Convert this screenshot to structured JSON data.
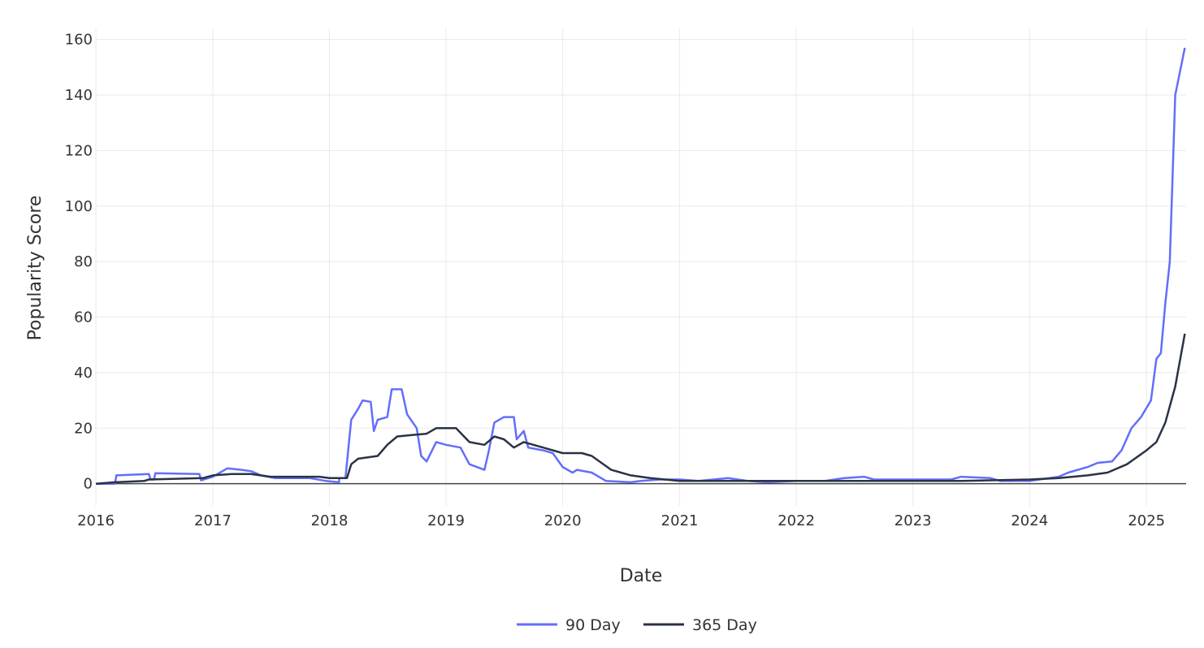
{
  "chart_data": {
    "type": "line",
    "title": "",
    "xlabel": "Date",
    "ylabel": "Popularity Score",
    "xlim": [
      "2016-01-01",
      "2025-05-05"
    ],
    "ylim": [
      -8,
      164
    ],
    "x_ticks": [
      "2016",
      "2017",
      "2018",
      "2019",
      "2020",
      "2021",
      "2022",
      "2023",
      "2024",
      "2025"
    ],
    "y_ticks": [
      0,
      20,
      40,
      60,
      80,
      100,
      120,
      140,
      160
    ],
    "grid": true,
    "legend_position": "bottom-center",
    "series": [
      {
        "name": "90 Day",
        "color": "#636efa",
        "points": [
          [
            "2016-01-01",
            0
          ],
          [
            "2016-03-01",
            0
          ],
          [
            "2016-03-05",
            3
          ],
          [
            "2016-06-15",
            3.5
          ],
          [
            "2016-06-20",
            1.5
          ],
          [
            "2016-07-01",
            1.5
          ],
          [
            "2016-07-05",
            3.8
          ],
          [
            "2016-11-20",
            3.5
          ],
          [
            "2016-11-25",
            1.2
          ],
          [
            "2017-01-01",
            2.5
          ],
          [
            "2017-02-15",
            5.5
          ],
          [
            "2017-04-01",
            5
          ],
          [
            "2017-05-01",
            4.5
          ],
          [
            "2017-06-01",
            3
          ],
          [
            "2017-07-15",
            2
          ],
          [
            "2017-11-01",
            2
          ],
          [
            "2017-12-20",
            1
          ],
          [
            "2018-01-31",
            0.5
          ],
          [
            "2018-02-01",
            2
          ],
          [
            "2018-02-20",
            2
          ],
          [
            "2018-03-10",
            23
          ],
          [
            "2018-04-01",
            27
          ],
          [
            "2018-04-15",
            30
          ],
          [
            "2018-05-10",
            29.5
          ],
          [
            "2018-05-20",
            19
          ],
          [
            "2018-06-01",
            23
          ],
          [
            "2018-07-01",
            24
          ],
          [
            "2018-07-15",
            34
          ],
          [
            "2018-08-15",
            34
          ],
          [
            "2018-09-01",
            25
          ],
          [
            "2018-10-01",
            20
          ],
          [
            "2018-10-15",
            10
          ],
          [
            "2018-11-01",
            8
          ],
          [
            "2018-12-01",
            15
          ],
          [
            "2019-01-01",
            14
          ],
          [
            "2019-02-15",
            13
          ],
          [
            "2019-03-15",
            7
          ],
          [
            "2019-05-01",
            5
          ],
          [
            "2019-05-15",
            12
          ],
          [
            "2019-06-01",
            22
          ],
          [
            "2019-07-01",
            24
          ],
          [
            "2019-08-01",
            24
          ],
          [
            "2019-08-10",
            16
          ],
          [
            "2019-09-01",
            19
          ],
          [
            "2019-09-15",
            13
          ],
          [
            "2019-11-01",
            12
          ],
          [
            "2019-12-01",
            11
          ],
          [
            "2020-01-01",
            6
          ],
          [
            "2020-02-01",
            4
          ],
          [
            "2020-02-15",
            5
          ],
          [
            "2020-04-01",
            4
          ],
          [
            "2020-05-15",
            1
          ],
          [
            "2020-08-01",
            0.5
          ],
          [
            "2020-09-01",
            1
          ],
          [
            "2020-11-01",
            1.5
          ],
          [
            "2021-01-01",
            1.5
          ],
          [
            "2021-03-01",
            1
          ],
          [
            "2021-06-01",
            2
          ],
          [
            "2021-08-01",
            1
          ],
          [
            "2021-10-01",
            0.5
          ],
          [
            "2022-01-01",
            1
          ],
          [
            "2022-04-01",
            1
          ],
          [
            "2022-06-01",
            2
          ],
          [
            "2022-08-01",
            2.5
          ],
          [
            "2022-09-01",
            1.5
          ],
          [
            "2023-01-01",
            1.5
          ],
          [
            "2023-05-01",
            1.5
          ],
          [
            "2023-06-01",
            2.5
          ],
          [
            "2023-09-01",
            2
          ],
          [
            "2023-10-01",
            1
          ],
          [
            "2024-01-01",
            1
          ],
          [
            "2024-04-01",
            2.5
          ],
          [
            "2024-05-01",
            4
          ],
          [
            "2024-07-01",
            6
          ],
          [
            "2024-08-01",
            7.5
          ],
          [
            "2024-09-15",
            8
          ],
          [
            "2024-10-15",
            12
          ],
          [
            "2024-11-15",
            20
          ],
          [
            "2024-12-15",
            24
          ],
          [
            "2025-01-15",
            30
          ],
          [
            "2025-02-01",
            45
          ],
          [
            "2025-02-15",
            47
          ],
          [
            "2025-03-01",
            65
          ],
          [
            "2025-03-15",
            80
          ],
          [
            "2025-04-01",
            140
          ],
          [
            "2025-05-01",
            157
          ]
        ]
      },
      {
        "name": "365 Day",
        "color": "#2a3344",
        "points": [
          [
            "2016-01-01",
            0
          ],
          [
            "2016-03-01",
            0.5
          ],
          [
            "2016-06-01",
            1
          ],
          [
            "2016-06-15",
            1.5
          ],
          [
            "2016-12-01",
            2
          ],
          [
            "2017-01-01",
            3
          ],
          [
            "2017-03-01",
            3.5
          ],
          [
            "2017-05-01",
            3.5
          ],
          [
            "2017-07-01",
            2.5
          ],
          [
            "2017-12-01",
            2.5
          ],
          [
            "2018-01-01",
            2
          ],
          [
            "2018-02-25",
            2
          ],
          [
            "2018-03-10",
            7
          ],
          [
            "2018-04-01",
            9
          ],
          [
            "2018-06-01",
            10
          ],
          [
            "2018-07-01",
            14
          ],
          [
            "2018-08-01",
            17
          ],
          [
            "2018-09-15",
            17.5
          ],
          [
            "2018-11-01",
            18
          ],
          [
            "2018-12-01",
            20
          ],
          [
            "2019-02-01",
            20
          ],
          [
            "2019-03-15",
            15
          ],
          [
            "2019-05-01",
            14
          ],
          [
            "2019-06-01",
            17
          ],
          [
            "2019-07-01",
            16
          ],
          [
            "2019-08-01",
            13
          ],
          [
            "2019-09-01",
            15
          ],
          [
            "2019-11-01",
            13
          ],
          [
            "2020-01-01",
            11
          ],
          [
            "2020-03-01",
            11
          ],
          [
            "2020-04-01",
            10
          ],
          [
            "2020-06-01",
            5
          ],
          [
            "2020-08-01",
            3
          ],
          [
            "2020-10-01",
            2
          ],
          [
            "2021-01-01",
            1
          ],
          [
            "2021-06-01",
            1
          ],
          [
            "2022-01-01",
            1
          ],
          [
            "2022-06-01",
            1
          ],
          [
            "2023-01-01",
            1
          ],
          [
            "2023-06-01",
            1
          ],
          [
            "2024-01-01",
            1.5
          ],
          [
            "2024-04-01",
            2
          ],
          [
            "2024-07-01",
            3
          ],
          [
            "2024-09-01",
            4
          ],
          [
            "2024-11-01",
            7
          ],
          [
            "2025-01-01",
            12
          ],
          [
            "2025-02-01",
            15
          ],
          [
            "2025-03-01",
            22
          ],
          [
            "2025-04-01",
            35
          ],
          [
            "2025-05-01",
            54
          ]
        ]
      }
    ]
  }
}
